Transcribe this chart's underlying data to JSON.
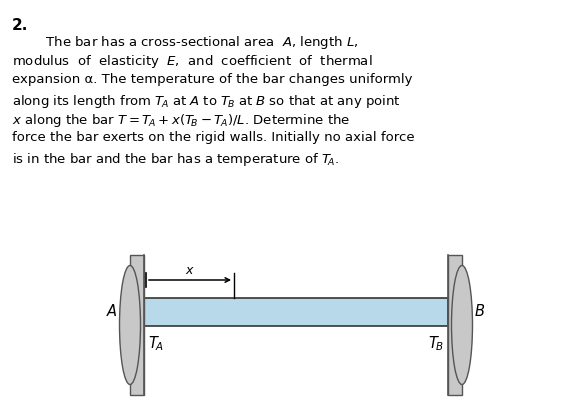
{
  "bg_color": "#ffffff",
  "bar_fill_color": "#b8d9ea",
  "bar_edge_color": "#333333",
  "wall_fill_color": "#c8c8c8",
  "wall_edge_color": "#555555",
  "text_color": "#000000",
  "problem_number": "2.",
  "line1": "        The bar has a cross-sectional area  $A$, length $L$,",
  "line2": "modulus  of  elasticity  $E$,  and  coefficient  of  thermal",
  "line3": "expansion α. The temperature of the bar changes uniformly",
  "line4": "along its length from $T_{\\!A}$ at $A$ to $T_{\\!B}$ at $B$ so that at any point",
  "line5": "$x$ along the bar $T = T_{\\!A} + x(T_{\\!B} - T_{\\!A})/L$. Determine the",
  "line6": "force the bar exerts on the rigid walls. Initially no axial force",
  "line7": "is in the bar and the bar has a temperature of $T_{\\!A}$.",
  "label_A": "A",
  "label_B": "B",
  "label_TA": "$T_{\\!A}$",
  "label_TB": "$T_{\\!B}$",
  "label_x": "$x$",
  "font_size_text": 9.5,
  "font_size_label": 10.5,
  "font_size_number": 11
}
